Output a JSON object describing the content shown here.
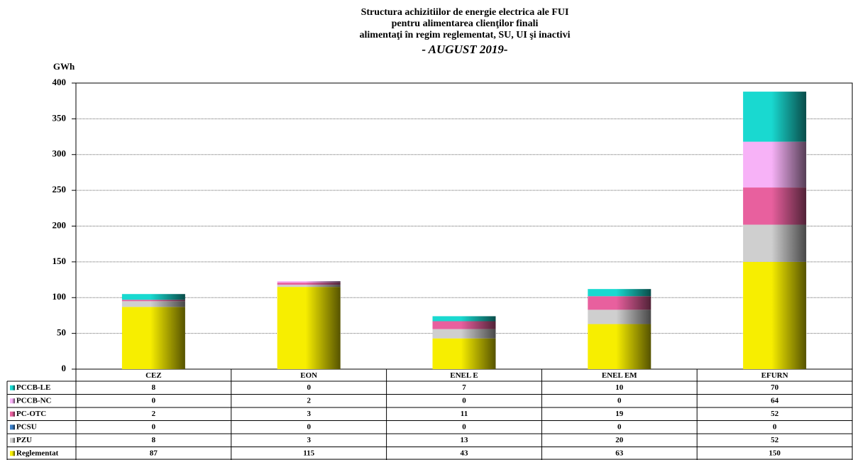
{
  "chart_data": {
    "type": "bar",
    "stacked": true,
    "title": [
      "Structura achizitiilor de energie electrica ale FUI",
      "pentru alimentarea clienţilor finali",
      "alimentaţi în regim reglementat, SU, UI şi inactivi",
      "- AUGUST 2019-"
    ],
    "y_label": "GWh",
    "categories": [
      "CEZ",
      "EON",
      "ENEL E",
      "ENEL EM",
      "EFURN"
    ],
    "series": [
      {
        "name": "PCCB-LE",
        "color": "#19d9d0",
        "values": [
          8,
          0,
          7,
          10,
          70
        ]
      },
      {
        "name": "PCCB-NC",
        "color": "#f7b2f7",
        "values": [
          0,
          2,
          0,
          0,
          64
        ]
      },
      {
        "name": "PC-OTC",
        "color": "#e8609e",
        "values": [
          2,
          3,
          11,
          19,
          52
        ]
      },
      {
        "name": "PCSU",
        "color": "#3a7fc8",
        "values": [
          0,
          0,
          0,
          0,
          0
        ]
      },
      {
        "name": "PZU",
        "color": "#cfcfcf",
        "values": [
          8,
          3,
          13,
          20,
          52
        ]
      },
      {
        "name": "Reglementat",
        "color": "#f7ee00",
        "values": [
          87,
          115,
          43,
          63,
          150
        ]
      }
    ],
    "ylim": [
      0,
      400
    ],
    "yticks": [
      0,
      50,
      100,
      150,
      200,
      250,
      300,
      350,
      400
    ],
    "grid": true
  }
}
